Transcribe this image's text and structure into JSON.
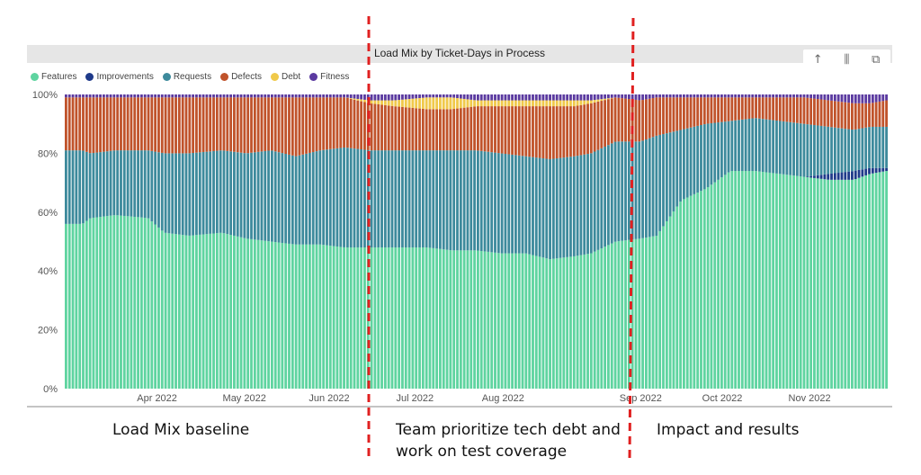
{
  "chart_data": {
    "type": "bar",
    "stacked": true,
    "title": "Load Mix by Ticket-Days in Process",
    "y_ticks": [
      "0%",
      "20%",
      "40%",
      "60%",
      "80%",
      "100%"
    ],
    "x_labels": [
      "Apr 2022",
      "May 2022",
      "Jun 2022",
      "Jul 2022",
      "Aug 2022",
      "Sep 2022",
      "Oct 2022",
      "Nov 2022"
    ],
    "ylim": [
      0,
      100
    ],
    "grid": false,
    "legend_position": "top-left",
    "series": [
      {
        "name": "Features",
        "color": "#5fd4a0"
      },
      {
        "name": "Improvements",
        "color": "#1f3a8a"
      },
      {
        "name": "Requests",
        "color": "#3d8a9c"
      },
      {
        "name": "Defects",
        "color": "#c0532b"
      },
      {
        "name": "Debt",
        "color": "#f0c94a"
      },
      {
        "name": "Fitness",
        "color": "#5b3aa0"
      }
    ],
    "breakpoints": [
      {
        "t": 0,
        "features": 56,
        "improvements": 0,
        "requests": 81,
        "defects": 99,
        "debt": 99
      },
      {
        "t": 0.02,
        "features": 56,
        "improvements": 0,
        "requests": 81,
        "defects": 99,
        "debt": 99
      },
      {
        "t": 0.03,
        "features": 58,
        "improvements": 0,
        "requests": 80,
        "defects": 99,
        "debt": 99
      },
      {
        "t": 0.06,
        "features": 59,
        "improvements": 0,
        "requests": 81,
        "defects": 99,
        "debt": 99
      },
      {
        "t": 0.1,
        "features": 58,
        "improvements": 0,
        "requests": 81,
        "defects": 99,
        "debt": 99
      },
      {
        "t": 0.12,
        "features": 53,
        "improvements": 0,
        "requests": 80,
        "defects": 99,
        "debt": 99
      },
      {
        "t": 0.15,
        "features": 52,
        "improvements": 0,
        "requests": 80,
        "defects": 99,
        "debt": 99
      },
      {
        "t": 0.19,
        "features": 53,
        "improvements": 0,
        "requests": 81,
        "defects": 99,
        "debt": 99
      },
      {
        "t": 0.22,
        "features": 51,
        "improvements": 0,
        "requests": 80,
        "defects": 99,
        "debt": 99
      },
      {
        "t": 0.25,
        "features": 50,
        "improvements": 0,
        "requests": 81,
        "defects": 99,
        "debt": 99
      },
      {
        "t": 0.28,
        "features": 49,
        "improvements": 0,
        "requests": 79,
        "defects": 99,
        "debt": 99
      },
      {
        "t": 0.31,
        "features": 49,
        "improvements": 0,
        "requests": 81,
        "defects": 99,
        "debt": 99
      },
      {
        "t": 0.34,
        "features": 48,
        "improvements": 0,
        "requests": 82,
        "defects": 99,
        "debt": 99
      },
      {
        "t": 0.37,
        "features": 48,
        "improvements": 0,
        "requests": 81,
        "defects": 97,
        "debt": 98
      },
      {
        "t": 0.4,
        "features": 48,
        "improvements": 0,
        "requests": 81,
        "defects": 96,
        "debt": 98
      },
      {
        "t": 0.44,
        "features": 48,
        "improvements": 0,
        "requests": 81,
        "defects": 95,
        "debt": 99
      },
      {
        "t": 0.47,
        "features": 47,
        "improvements": 0,
        "requests": 81,
        "defects": 95,
        "debt": 99
      },
      {
        "t": 0.5,
        "features": 47,
        "improvements": 0,
        "requests": 81,
        "defects": 96,
        "debt": 98
      },
      {
        "t": 0.53,
        "features": 46,
        "improvements": 0,
        "requests": 80,
        "defects": 96,
        "debt": 98
      },
      {
        "t": 0.56,
        "features": 46,
        "improvements": 0,
        "requests": 79,
        "defects": 96,
        "debt": 98
      },
      {
        "t": 0.59,
        "features": 44,
        "improvements": 0,
        "requests": 78,
        "defects": 96,
        "debt": 98
      },
      {
        "t": 0.62,
        "features": 45,
        "improvements": 0,
        "requests": 79,
        "defects": 96,
        "debt": 98
      },
      {
        "t": 0.64,
        "features": 46,
        "improvements": 0,
        "requests": 80,
        "defects": 97,
        "debt": 98
      },
      {
        "t": 0.67,
        "features": 50,
        "improvements": 0,
        "requests": 84,
        "defects": 99,
        "debt": 99
      },
      {
        "t": 0.7,
        "features": 51,
        "improvements": 0,
        "requests": 84,
        "defects": 98,
        "debt": 98
      },
      {
        "t": 0.72,
        "features": 52,
        "improvements": 0,
        "requests": 86,
        "defects": 99,
        "debt": 99
      },
      {
        "t": 0.75,
        "features": 64,
        "improvements": 0,
        "requests": 88,
        "defects": 99,
        "debt": 99
      },
      {
        "t": 0.78,
        "features": 68,
        "improvements": 0,
        "requests": 90,
        "defects": 99,
        "debt": 99
      },
      {
        "t": 0.81,
        "features": 74,
        "improvements": 0,
        "requests": 91,
        "defects": 99,
        "debt": 99
      },
      {
        "t": 0.84,
        "features": 74,
        "improvements": 0,
        "requests": 92,
        "defects": 99,
        "debt": 99
      },
      {
        "t": 0.87,
        "features": 73,
        "improvements": 0,
        "requests": 91,
        "defects": 99,
        "debt": 99
      },
      {
        "t": 0.9,
        "features": 72,
        "improvements": 0,
        "requests": 90,
        "defects": 99,
        "debt": 99
      },
      {
        "t": 0.93,
        "features": 71,
        "improvements": 2,
        "requests": 89,
        "defects": 98,
        "debt": 98
      },
      {
        "t": 0.96,
        "features": 71,
        "improvements": 3,
        "requests": 88,
        "defects": 97,
        "debt": 97
      },
      {
        "t": 0.98,
        "features": 73,
        "improvements": 2,
        "requests": 89,
        "defects": 97,
        "debt": 97
      },
      {
        "t": 1,
        "features": 74,
        "improvements": 1,
        "requests": 89,
        "defects": 98,
        "debt": 98
      }
    ]
  },
  "header": {
    "title": "Load Mix by Ticket-Days in Process",
    "toolbar": [
      {
        "icon": "arrow-up-icon",
        "glyph": "↑"
      },
      {
        "icon": "drill-down-icon",
        "glyph": "⫼"
      },
      {
        "icon": "copy-icon",
        "glyph": "⧉"
      }
    ]
  },
  "legend": [
    {
      "label": "Features",
      "color": "#5fd4a0"
    },
    {
      "label": "Improvements",
      "color": "#1f3a8a"
    },
    {
      "label": "Requests",
      "color": "#3d8a9c"
    },
    {
      "label": "Defects",
      "color": "#c0532b"
    },
    {
      "label": "Debt",
      "color": "#f0c94a"
    },
    {
      "label": "Fitness",
      "color": "#5b3aa0"
    }
  ],
  "phases": [
    {
      "label": "Load Mix baseline"
    },
    {
      "label": "Team prioritize tech debt and work on test coverage"
    },
    {
      "label": "Impact and results"
    }
  ],
  "divider_color": "#e02020"
}
